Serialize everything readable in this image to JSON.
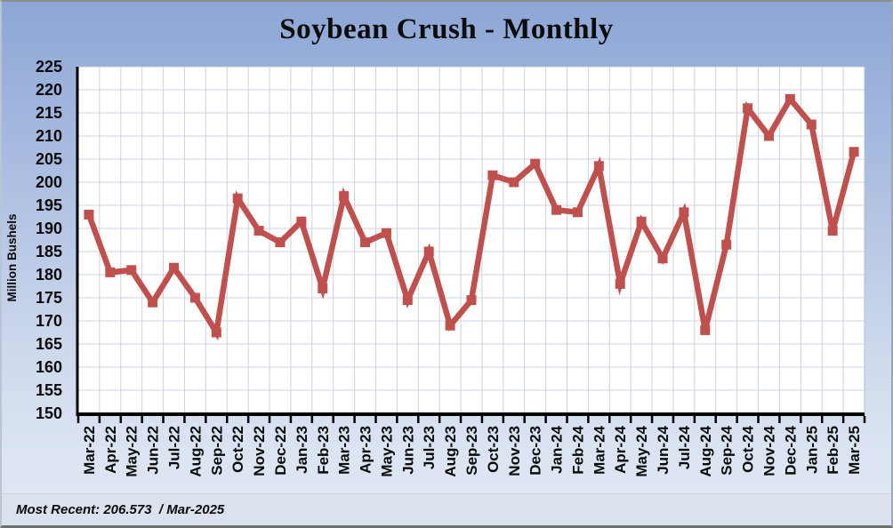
{
  "footer": {
    "text": "Most Recent: 206.573  / Mar-2025"
  },
  "colors": {
    "line": "#c0504d",
    "plot_background": "#ffffff",
    "gridline": "#ccd3df",
    "plot_border": "#b7bfcc",
    "axis": "#000000",
    "label_text": "#0a0a0a",
    "background_top": "#8da6d4",
    "background_bottom": "#dee6f3",
    "footer_background": "#dbe2ee"
  },
  "chart_data": {
    "type": "line",
    "title": "Soybean Crush - Monthly",
    "xlabel": "",
    "ylabel": "Million Bushels",
    "ylim": [
      150,
      225
    ],
    "ytick_step": 5,
    "grid": true,
    "legend_position": "none",
    "marker": "square",
    "categories": [
      "Mar-22",
      "Apr-22",
      "May-22",
      "Jun-22",
      "Jul-22",
      "Aug-22",
      "Sep-22",
      "Oct-22",
      "Nov-22",
      "Dec-22",
      "Jan-23",
      "Feb-23",
      "Mar-23",
      "Apr-23",
      "May-23",
      "Jun-23",
      "Jul-23",
      "Aug-23",
      "Sep-23",
      "Oct-23",
      "Nov-23",
      "Dec-23",
      "Jan-24",
      "Feb-24",
      "Mar-24",
      "Apr-24",
      "May-24",
      "Jun-24",
      "Jul-24",
      "Aug-24",
      "Sep-24",
      "Oct-24",
      "Nov-24",
      "Dec-24",
      "Jan-25",
      "Feb-25",
      "Mar-25"
    ],
    "values": [
      193,
      180.5,
      181,
      174,
      181.5,
      175,
      167.5,
      196.5,
      189.5,
      187,
      191.5,
      177,
      197,
      187,
      189,
      174.5,
      185,
      169,
      174.5,
      201.5,
      200,
      204,
      194,
      193.5,
      203.5,
      178,
      191.5,
      183.5,
      193.5,
      168,
      186.5,
      216,
      210,
      218,
      212.5,
      189.5,
      206.573
    ],
    "most_recent_value": 206.573,
    "most_recent_date": "Mar-2025"
  }
}
